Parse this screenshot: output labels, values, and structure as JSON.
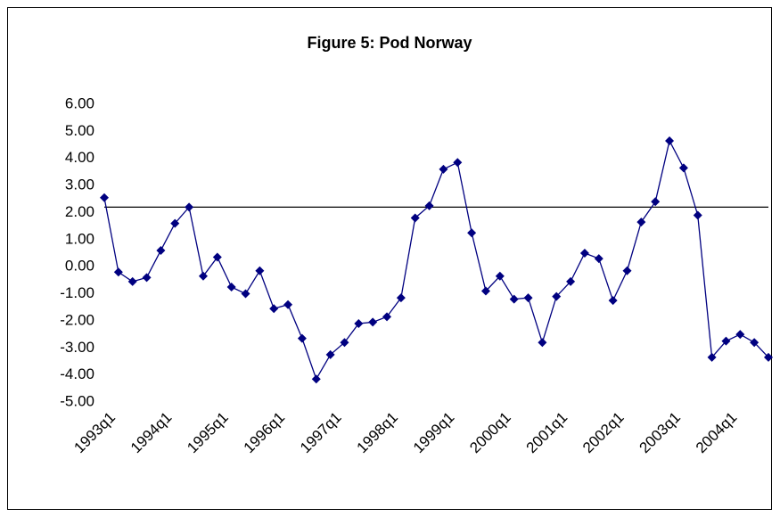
{
  "chart_data": {
    "type": "line",
    "title": "Figure 5: Pod Norway",
    "categories": [
      "1993q1",
      null,
      null,
      null,
      "1994q1",
      null,
      null,
      null,
      "1995q1",
      null,
      null,
      null,
      "1996q1",
      null,
      null,
      null,
      "1997q1",
      null,
      null,
      null,
      "1998q1",
      null,
      null,
      null,
      "1999q1",
      null,
      null,
      null,
      "2000q1",
      null,
      null,
      null,
      "2001q1",
      null,
      null,
      null,
      "2002q1",
      null,
      null,
      null,
      "2003q1",
      null,
      null,
      null,
      "2004q1",
      null,
      null,
      null
    ],
    "series": [
      {
        "name": "Pod Norway",
        "color": "#000080",
        "values": [
          2.55,
          -0.2,
          -0.55,
          -0.4,
          0.6,
          1.6,
          2.2,
          -0.35,
          0.35,
          -0.75,
          -1.0,
          -0.15,
          -1.55,
          -1.4,
          -2.65,
          -4.15,
          -3.25,
          -2.8,
          -2.1,
          -2.05,
          -1.85,
          -1.15,
          1.8,
          2.25,
          3.6,
          3.85,
          1.25,
          -0.9,
          -0.35,
          -1.2,
          -1.15,
          -2.8,
          -1.1,
          -0.55,
          0.5,
          0.3,
          -1.25,
          -0.15,
          1.65,
          2.4,
          4.65,
          3.65,
          1.9,
          -3.35,
          -2.75,
          -2.5,
          -2.8,
          -3.35
        ]
      }
    ],
    "reference_line": 2.2,
    "ylim": [
      -5,
      6
    ],
    "yticks": [
      {
        "value": -5,
        "label": "-5.00"
      },
      {
        "value": -4,
        "label": "-4.00"
      },
      {
        "value": -3,
        "label": "-3.00"
      },
      {
        "value": -2,
        "label": "-2.00"
      },
      {
        "value": -1,
        "label": "-1.00"
      },
      {
        "value": 0,
        "label": "0.00"
      },
      {
        "value": 1,
        "label": "1.00"
      },
      {
        "value": 2,
        "label": "2.00"
      },
      {
        "value": 3,
        "label": "3.00"
      },
      {
        "value": 4,
        "label": "4.00"
      },
      {
        "value": 5,
        "label": "5.00"
      },
      {
        "value": 6,
        "label": "6.00"
      }
    ],
    "grid": false
  }
}
